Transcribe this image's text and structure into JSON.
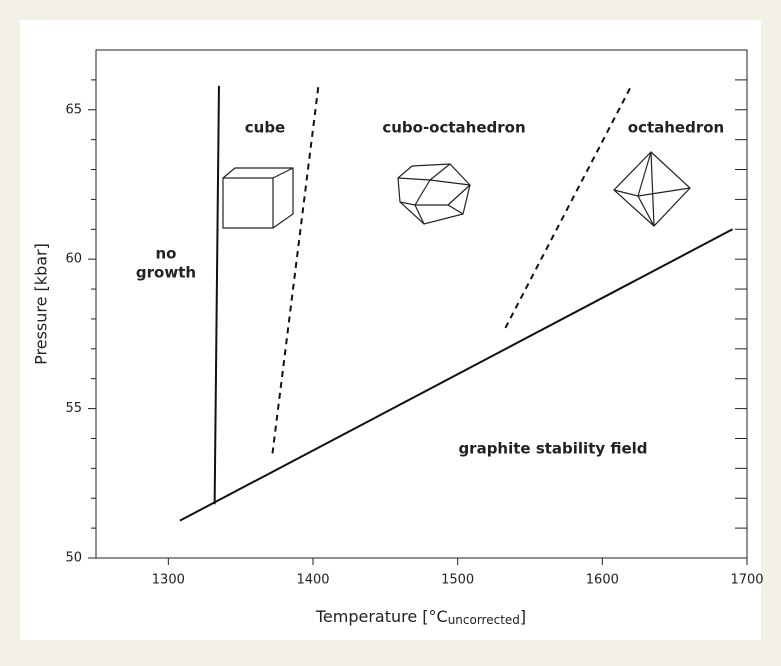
{
  "chart_data": {
    "type": "line",
    "xlabel": {
      "main": "Temperature [°C",
      "sub": "uncorrected",
      "close": "]"
    },
    "ylabel": "Pressure [kbar]",
    "xlim": [
      1250,
      1700
    ],
    "ylim": [
      50,
      67
    ],
    "xticks": [
      1300,
      1400,
      1500,
      1600,
      1700
    ],
    "yticks": [
      50,
      55,
      60,
      65
    ],
    "yticks_minor": [
      51,
      52,
      53,
      54,
      56,
      57,
      58,
      59,
      61,
      62,
      63,
      64,
      66
    ],
    "series": [
      {
        "color": "#111111",
        "style": "solid",
        "x": [
          1332,
          1335
        ],
        "values": [
          51.8,
          65.8
        ]
      },
      {
        "color": "#111111",
        "style": "dashed",
        "x": [
          1372,
          1404
        ],
        "values": [
          53.5,
          65.9
        ]
      },
      {
        "color": "#111111",
        "style": "dashed",
        "x": [
          1533,
          1620
        ],
        "values": [
          57.7,
          65.8
        ]
      },
      {
        "color": "#111111",
        "style": "solid",
        "x": [
          1308,
          1690
        ],
        "values": [
          51.25,
          61
        ]
      }
    ],
    "annotations": [
      "no",
      "growth",
      "cube",
      "cubo-octahedron",
      "octahedron",
      "graphite stability field"
    ]
  }
}
